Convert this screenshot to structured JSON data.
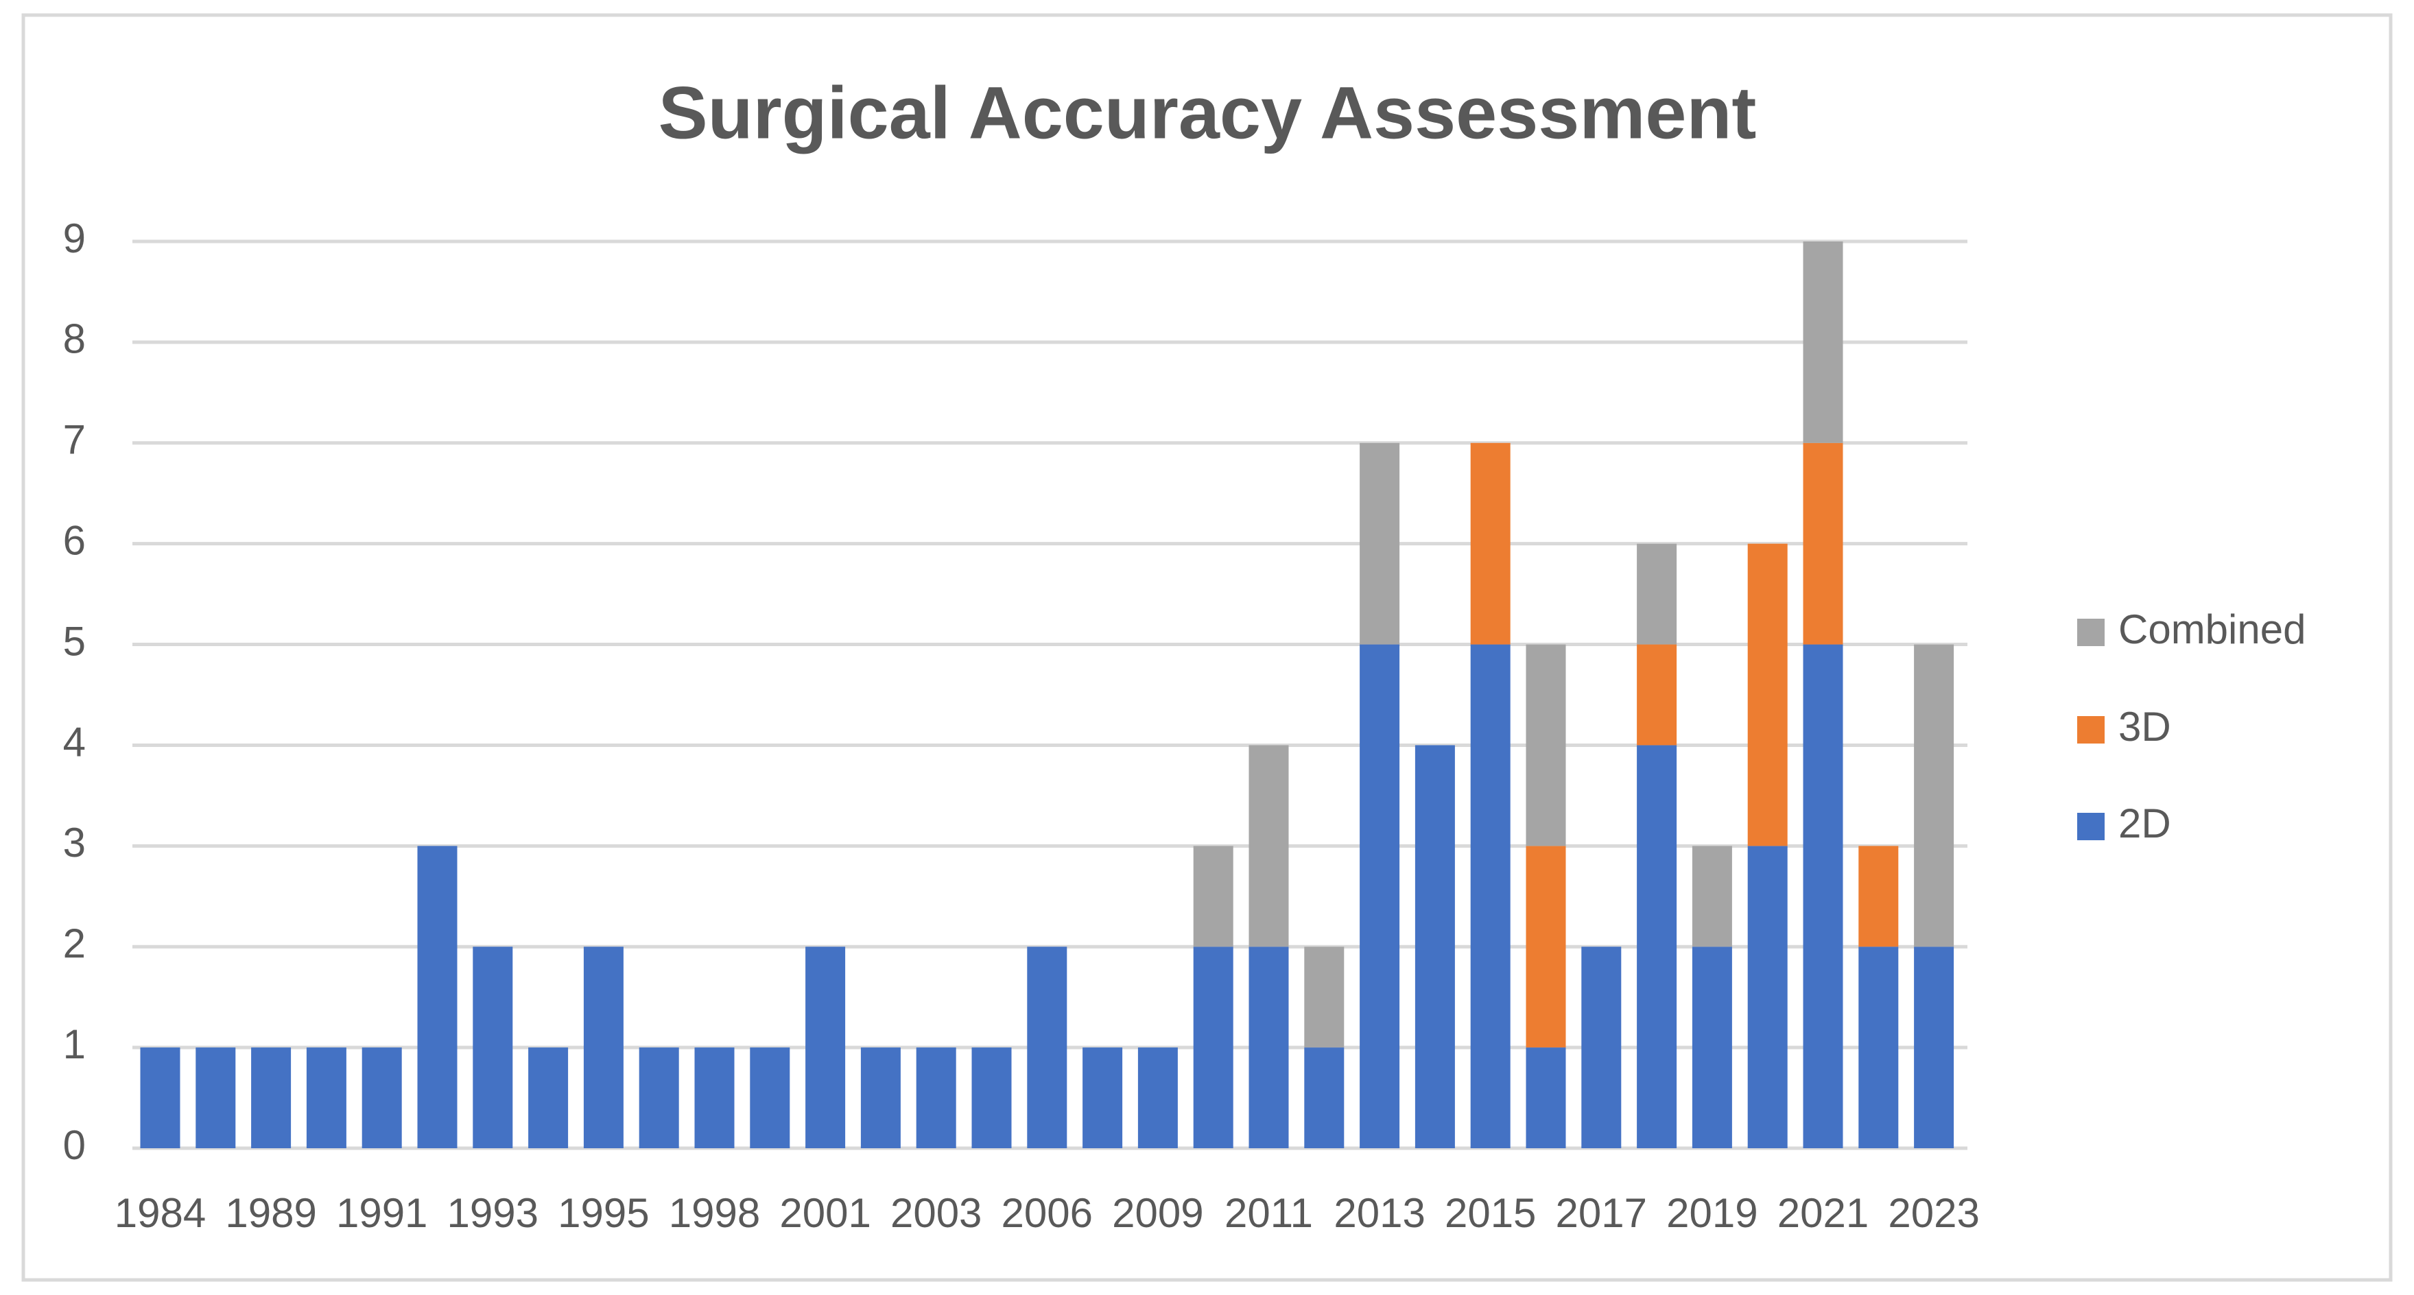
{
  "chart_data": {
    "type": "bar",
    "stacked": true,
    "title": "Surgical Accuracy Assessment",
    "categories": [
      "1984",
      null,
      "1989",
      null,
      "1991",
      null,
      "1993",
      null,
      "1995",
      null,
      "1998",
      null,
      "2001",
      null,
      "2003",
      null,
      "2006",
      null,
      "2009",
      null,
      "2011",
      null,
      "2013",
      null,
      "2015",
      null,
      "2017",
      null,
      "2019",
      null,
      "2021",
      null,
      "2023"
    ],
    "series": [
      {
        "name": "2D",
        "color": "#4472c4",
        "values": [
          1,
          1,
          1,
          1,
          1,
          3,
          2,
          1,
          2,
          1,
          1,
          1,
          2,
          1,
          1,
          1,
          2,
          1,
          1,
          2,
          2,
          1,
          5,
          4,
          5,
          1,
          2,
          4,
          2,
          3,
          5,
          2,
          2
        ]
      },
      {
        "name": "3D",
        "color": "#ed7d31",
        "values": [
          0,
          0,
          0,
          0,
          0,
          0,
          0,
          0,
          0,
          0,
          0,
          0,
          0,
          0,
          0,
          0,
          0,
          0,
          0,
          0,
          0,
          0,
          0,
          0,
          2,
          2,
          0,
          1,
          0,
          3,
          2,
          1,
          0
        ]
      },
      {
        "name": "Combined",
        "color": "#a5a5a5",
        "values": [
          0,
          0,
          0,
          0,
          0,
          0,
          0,
          0,
          0,
          0,
          0,
          0,
          0,
          0,
          0,
          0,
          0,
          0,
          0,
          1,
          2,
          1,
          2,
          0,
          0,
          2,
          0,
          1,
          1,
          0,
          2,
          0,
          3
        ]
      }
    ],
    "ylim": [
      0,
      9
    ],
    "yticks": [
      0,
      1,
      2,
      3,
      4,
      5,
      6,
      7,
      8,
      9
    ],
    "grid": true,
    "legend": "right"
  }
}
